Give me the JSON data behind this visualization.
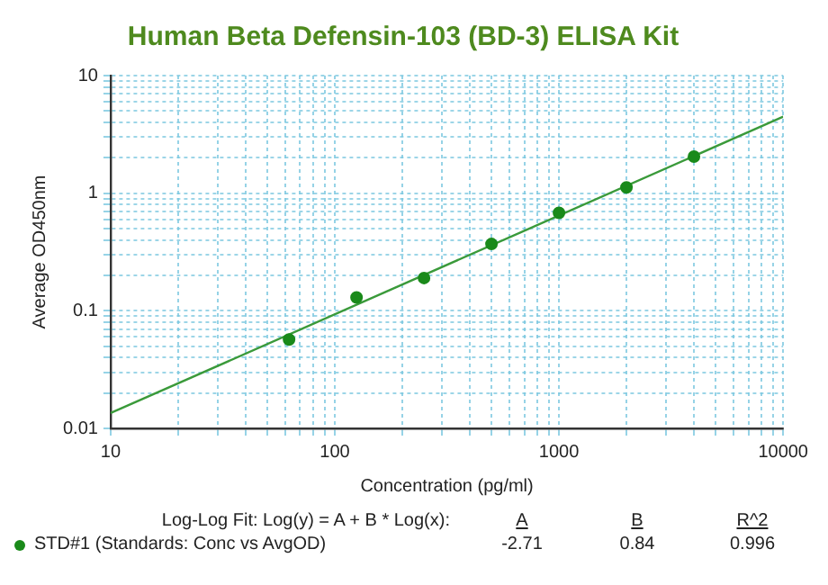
{
  "chart_data": {
    "type": "scatter",
    "title": "Human Beta Defensin-103 (BD-3) ELISA Kit",
    "xlabel": "Concentration (pg/ml)",
    "ylabel": "Average OD450nm",
    "log": "xy",
    "grid": true,
    "legend": "bottom",
    "marker": "circle",
    "xlim": [
      10,
      10000
    ],
    "ylim": [
      0.01,
      10
    ],
    "xticks": [
      10,
      {
        "value": 20,
        "label": null
      },
      {
        "value": 30,
        "label": null
      },
      {
        "value": 40,
        "label": null
      },
      {
        "value": 50,
        "label": null
      },
      {
        "value": 60,
        "label": null
      },
      {
        "value": 70,
        "label": null
      },
      {
        "value": 80,
        "label": null
      },
      {
        "value": 90,
        "label": null
      },
      100,
      {
        "value": 200,
        "label": null
      },
      {
        "value": 300,
        "label": null
      },
      {
        "value": 400,
        "label": null
      },
      {
        "value": 500,
        "label": null
      },
      {
        "value": 600,
        "label": null
      },
      {
        "value": 700,
        "label": null
      },
      {
        "value": 800,
        "label": null
      },
      {
        "value": 900,
        "label": null
      },
      1000,
      {
        "value": 2000,
        "label": null
      },
      {
        "value": 3000,
        "label": null
      },
      {
        "value": 4000,
        "label": null
      },
      {
        "value": 5000,
        "label": null
      },
      {
        "value": 6000,
        "label": null
      },
      {
        "value": 7000,
        "label": null
      },
      {
        "value": 8000,
        "label": null
      },
      {
        "value": 9000,
        "label": null
      },
      10000
    ],
    "yticks": [
      0.01,
      {
        "value": 0.02,
        "label": null
      },
      {
        "value": 0.03,
        "label": null
      },
      {
        "value": 0.04,
        "label": null
      },
      {
        "value": 0.05,
        "label": null
      },
      {
        "value": 0.06,
        "label": null
      },
      {
        "value": 0.07,
        "label": null
      },
      {
        "value": 0.08,
        "label": null
      },
      {
        "value": 0.09,
        "label": null
      },
      0.1,
      {
        "value": 0.2,
        "label": null
      },
      {
        "value": 0.3,
        "label": null
      },
      {
        "value": 0.4,
        "label": null
      },
      {
        "value": 0.5,
        "label": null
      },
      {
        "value": 0.6,
        "label": null
      },
      {
        "value": 0.7,
        "label": null
      },
      {
        "value": 0.8,
        "label": null
      },
      {
        "value": 0.9,
        "label": null
      },
      1,
      {
        "value": 2,
        "label": null
      },
      {
        "value": 3,
        "label": null
      },
      {
        "value": 4,
        "label": null
      },
      {
        "value": 5,
        "label": null
      },
      {
        "value": 6,
        "label": null
      },
      {
        "value": 7,
        "label": null
      },
      {
        "value": 8,
        "label": null
      },
      {
        "value": 9,
        "label": null
      },
      10
    ],
    "series": [
      {
        "name": "STD#1 (Standards: Conc vs AvgOD)",
        "type": "scatter",
        "color": "#1a8a1a",
        "x": [
          62.5,
          125,
          250,
          500,
          1000,
          2000,
          4000
        ],
        "values": [
          0.057,
          0.13,
          0.19,
          0.37,
          0.68,
          1.12,
          2.05
        ]
      },
      {
        "type": "line",
        "color": "#3a9a3a",
        "marker": "none",
        "line_style": "solid",
        "x": [
          10,
          10000
        ],
        "values": [
          0.0135,
          4.47
        ]
      }
    ],
    "annotations": [
      "Log-Log Fit: Log(y) = A + B * Log(x):",
      "A",
      "B",
      "R^2",
      "-2.71",
      "0.84",
      "0.996"
    ]
  }
}
